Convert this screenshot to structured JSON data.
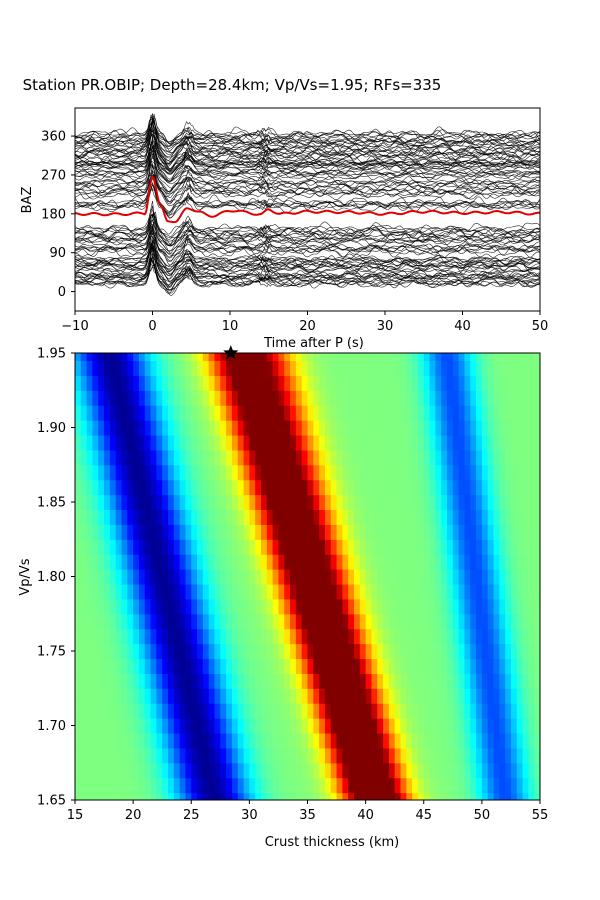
{
  "figure": {
    "title": "Station PR.OBIP; Depth=28.4km; Vp/Vs=1.95; RFs=335"
  },
  "chart_data": [
    {
      "type": "line",
      "panel": "receiver-functions",
      "xlabel": "Time after P (s)",
      "ylabel": "BAZ",
      "xlim": [
        -10,
        50
      ],
      "ylim": [
        -45,
        425
      ],
      "xticks": [
        -10,
        0,
        10,
        20,
        30,
        40,
        50
      ],
      "yticks": [
        0,
        90,
        180,
        270,
        360
      ],
      "grid": false,
      "trace_count_shown": 335,
      "trace_color": "#000000",
      "stack_color": "#e00000",
      "stack_trace": {
        "name": "stack",
        "baseline_baz": 180,
        "x": [
          -10,
          -5,
          -1,
          0,
          1,
          2,
          3,
          4.5,
          6,
          8,
          10,
          12,
          14,
          15,
          16.5,
          20,
          25,
          30,
          35,
          40,
          45,
          50
        ],
        "y": [
          180,
          179,
          181,
          265,
          200,
          165,
          160,
          195,
          183,
          175,
          188,
          184,
          178,
          190,
          180,
          185,
          184,
          180,
          185,
          182,
          184,
          180
        ]
      },
      "trace_bands_baz": [
        20,
        40,
        55,
        70,
        95,
        120,
        140,
        200,
        230,
        250,
        270,
        290,
        300,
        315,
        330,
        345,
        360
      ]
    },
    {
      "type": "heatmap",
      "panel": "hk-stack",
      "xlabel": "Crust thickness (km)",
      "ylabel": "Vp/Vs",
      "xlim": [
        15,
        55
      ],
      "ylim": [
        1.65,
        1.95
      ],
      "xticks": [
        15,
        20,
        25,
        30,
        35,
        40,
        45,
        50,
        55
      ],
      "yticks": [
        1.65,
        1.7,
        1.75,
        1.8,
        1.85,
        1.9,
        1.95
      ],
      "colormap": "jet",
      "grid": false,
      "best_fit": {
        "H": 28.4,
        "k": 1.95,
        "marker": "star"
      },
      "ridges": [
        {
          "name": "minimum",
          "H_at_k_1.95": 18.0,
          "H_at_k_1.65": 27.0,
          "level": 0.02
        },
        {
          "name": "Ps",
          "H_at_k_1.95": 28.8,
          "H_at_k_1.65": 40.5,
          "level": 1.0
        },
        {
          "name": "PpPs",
          "H_at_k_1.95": 31.5,
          "H_at_k_1.65": 41.5,
          "level": 0.8
        },
        {
          "name": "PpSs",
          "H_at_k_1.95": 47.0,
          "H_at_k_1.65": 52.0,
          "level": 0.2
        }
      ]
    }
  ]
}
